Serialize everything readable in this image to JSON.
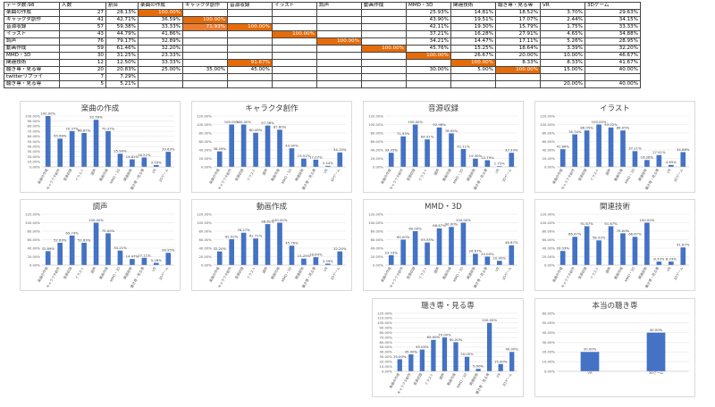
{
  "sheet": {
    "header": [
      "データ数:98",
      "人数",
      "割合",
      "楽曲の作成",
      "キャラクタ創作",
      "音源収録",
      "イラスト",
      "調声",
      "動画作成",
      "MMD・3D",
      "関連技術",
      "聴き専・見る専",
      "VR",
      "3Dゲーム"
    ],
    "rows": [
      {
        "label": "楽曲の作成",
        "count": "27",
        "ratio": "28.13%",
        "cells": [
          "100.00%",
          "",
          "",
          "",
          "",
          "",
          "25.93%",
          "14.81%",
          "18.52%",
          "3.70%",
          "29.63%"
        ]
      },
      {
        "label": "キャラクタ創作",
        "count": "41",
        "ratio": "42.71%",
        "cells": [
          "36.59%",
          "100.00%",
          "",
          "",
          "",
          "",
          "43.90%",
          "19.51%",
          "17.07%",
          "2.44%",
          "34.15%"
        ]
      },
      {
        "label": "音源収録",
        "count": "57",
        "ratio": "59.38%",
        "cells": [
          "33.33%",
          "71.93%",
          "100.00%",
          "",
          "",
          "",
          "42.11%",
          "19.30%",
          "15.79%",
          "1.75%",
          "33.33%"
        ]
      },
      {
        "label": "イラスト",
        "count": "43",
        "ratio": "44.79%",
        "cells": [
          "41.86%",
          "",
          "",
          "100.00%",
          "",
          "",
          "37.21%",
          "16.28%",
          "27.91%",
          "4.65%",
          "34.88%"
        ]
      },
      {
        "label": "調声",
        "count": "76",
        "ratio": "79.17%",
        "cells": [
          "32.89%",
          "",
          "",
          "",
          "100.00%",
          "",
          "34.21%",
          "14.47%",
          "17.11%",
          "5.26%",
          "28.95%"
        ]
      },
      {
        "label": "動画作成",
        "count": "59",
        "ratio": "61.46%",
        "cells": [
          "32.20%",
          "",
          "",
          "",
          "",
          "100.00%",
          "45.76%",
          "15.25%",
          "18.64%",
          "3.39%",
          "32.20%"
        ]
      },
      {
        "label": "MMD・3D",
        "count": "30",
        "ratio": "31.25%",
        "cells": [
          "23.33%",
          "",
          "",
          "",
          "",
          "",
          "100.00%",
          "26.67%",
          "20.00%",
          "10.00%",
          "46.67%"
        ]
      },
      {
        "label": "関連技術",
        "count": "12",
        "ratio": "12.50%",
        "cells": [
          "33.33%",
          "",
          "91.67%",
          "",
          "",
          "",
          "",
          "100.00%",
          "8.33%",
          "8.33%",
          "41.67%"
        ]
      },
      {
        "label": "聴き専・見る専",
        "count": "20",
        "ratio": "20.83%",
        "cells": [
          "25.00%",
          "35.00%",
          "45.00%",
          "",
          "",
          "",
          "30.00%",
          "5.00%",
          "100.00%",
          "15.00%",
          "40.00%"
        ]
      },
      {
        "label": "twitterリプライ",
        "count": "7",
        "ratio": "7.29%",
        "cells": [
          "",
          "",
          "",
          "",
          "",
          "",
          "",
          "",
          "",
          "",
          ""
        ]
      },
      {
        "label": "聴き専・見る専",
        "count": "5",
        "ratio": "5.21%",
        "cells": [
          "",
          "",
          "",
          "",
          "",
          "",
          "",
          "",
          "",
          "20.00%",
          "40.00%"
        ]
      }
    ]
  },
  "colors": {
    "bar": "#4472c4",
    "hot_strong": "#e46c0a",
    "hot_mid": "#ed7d31",
    "hot_light": "#f4b183",
    "grid": "#d9d9d9",
    "table_border": "#444444"
  },
  "chart_data": [
    {
      "type": "bar",
      "title": "楽曲の作成",
      "categories": [
        "楽曲の作成",
        "キャラクタ創作",
        "音源収録",
        "イラスト",
        "調声",
        "動画作成",
        "MMD・3D",
        "関連技術",
        "聴き専・見る専",
        "VR",
        "3Dゲーム"
      ],
      "values": [
        100.0,
        55.56,
        70.37,
        66.67,
        92.59,
        70.37,
        25.93,
        14.81,
        18.52,
        3.7,
        29.63
      ],
      "ylim": [
        0,
        100
      ],
      "yticks": [
        "0.00%",
        "10.00%",
        "20.00%",
        "30.00%",
        "40.00%",
        "50.00%",
        "60.00%",
        "70.00%",
        "80.00%",
        "90.00%",
        "100.00%"
      ]
    },
    {
      "type": "bar",
      "title": "キャラクタ創作",
      "categories": [
        "楽曲の作成",
        "キャラクタ創作",
        "音源収録",
        "イラスト",
        "調声",
        "動画作成",
        "MMD・3D",
        "関連技術",
        "聴き専・見る専",
        "VR",
        "3Dゲーム"
      ],
      "values": [
        36.59,
        100.0,
        100.0,
        80.49,
        97.56,
        87.8,
        43.9,
        19.51,
        17.07,
        2.44,
        34.15
      ],
      "ylim": [
        0,
        120
      ],
      "yticks": [
        "0.00%",
        "20.00%",
        "40.00%",
        "60.00%",
        "80.00%",
        "100.00%",
        "120.00%"
      ]
    },
    {
      "type": "bar",
      "title": "音源収録",
      "categories": [
        "楽曲の作成",
        "キャラクタ創作",
        "音源収録",
        "イラスト",
        "調声",
        "動画作成",
        "MMD・3D",
        "関連技術",
        "聴き専・見る専",
        "VR",
        "3Dゲーム"
      ],
      "values": [
        33.33,
        71.93,
        100.0,
        64.91,
        92.98,
        78.95,
        42.11,
        19.3,
        15.79,
        1.75,
        33.33
      ],
      "ylim": [
        0,
        120
      ],
      "yticks": [
        "0.00%",
        "20.00%",
        "40.00%",
        "60.00%",
        "80.00%",
        "100.00%",
        "120.00%"
      ]
    },
    {
      "type": "bar",
      "title": "イラスト",
      "categories": [
        "楽曲の作成",
        "キャラクタ創作",
        "音源収録",
        "イラスト",
        "調声",
        "動画作成",
        "MMD・3D",
        "関連技術",
        "聴き専・見る専",
        "VR",
        "3Dゲーム"
      ],
      "values": [
        41.86,
        76.74,
        86.05,
        100.0,
        93.02,
        86.05,
        37.21,
        16.28,
        27.91,
        4.65,
        34.88
      ],
      "ylim": [
        0,
        120
      ],
      "yticks": [
        "0.00%",
        "20.00%",
        "40.00%",
        "60.00%",
        "80.00%",
        "100.00%",
        "120.00%"
      ]
    },
    {
      "type": "bar",
      "title": "調声",
      "categories": [
        "楽曲の作成",
        "キャラクタ創作",
        "音源収録",
        "イラスト",
        "調声",
        "動画作成",
        "MMD・3D",
        "関連技術",
        "聴き専・見る専",
        "VR",
        "3Dゲーム"
      ],
      "values": [
        32.89,
        52.63,
        69.74,
        52.63,
        100.0,
        75.0,
        34.21,
        14.47,
        17.11,
        5.26,
        28.95
      ],
      "ylim": [
        0,
        120
      ],
      "yticks": [
        "0.00%",
        "20.00%",
        "40.00%",
        "60.00%",
        "80.00%",
        "100.00%",
        "120.00%"
      ]
    },
    {
      "type": "bar",
      "title": "動画作成",
      "categories": [
        "楽曲の作成",
        "キャラクタ創作",
        "音源収録",
        "イラスト",
        "調声",
        "動画作成",
        "MMD・3D",
        "関連技術",
        "聴き専・見る専",
        "VR",
        "3Dゲーム"
      ],
      "values": [
        32.2,
        61.02,
        76.27,
        62.71,
        96.61,
        100.0,
        45.76,
        15.25,
        18.64,
        3.39,
        32.2
      ],
      "ylim": [
        0,
        120
      ],
      "yticks": [
        "0.00%",
        "20.00%",
        "40.00%",
        "60.00%",
        "80.00%",
        "100.00%",
        "120.00%"
      ]
    },
    {
      "type": "bar",
      "title": "MMD・3D",
      "categories": [
        "楽曲の作成",
        "キャラクタ創作",
        "音源収録",
        "イラスト",
        "調声",
        "動画作成",
        "MMD・3D",
        "関連技術",
        "聴き専・見る専",
        "VR",
        "3Dゲーム"
      ],
      "values": [
        23.33,
        60.0,
        80.0,
        53.33,
        86.67,
        90.0,
        100.0,
        26.67,
        20.0,
        10.0,
        46.67
      ],
      "ylim": [
        0,
        120
      ],
      "yticks": [
        "0.00%",
        "20.00%",
        "40.00%",
        "60.00%",
        "80.00%",
        "100.00%",
        "120.00%"
      ]
    },
    {
      "type": "bar",
      "title": "関連技術",
      "categories": [
        "楽曲の作成",
        "キャラクタ創作",
        "音源収録",
        "イラスト",
        "調声",
        "動画作成",
        "MMD・3D",
        "関連技術",
        "聴き専・見る専",
        "VR",
        "3Dゲーム"
      ],
      "values": [
        33.33,
        66.67,
        91.67,
        58.33,
        91.67,
        75.0,
        66.67,
        100.0,
        8.33,
        8.33,
        41.67
      ],
      "ylim": [
        0,
        120
      ],
      "yticks": [
        "0.00%",
        "20.00%",
        "40.00%",
        "60.00%",
        "80.00%",
        "100.00%",
        "120.00%"
      ]
    },
    {
      "type": "bar",
      "title": "聴き専・見る専",
      "categories": [
        "楽曲の作成",
        "キャラクタ創作",
        "音源収録",
        "イラスト",
        "調声",
        "動画作成",
        "MMD・3D",
        "関連技術",
        "聴き専・見る専",
        "VR",
        "3Dゲーム"
      ],
      "values": [
        25.0,
        35.0,
        45.0,
        65.0,
        70.0,
        60.0,
        30.0,
        5.0,
        100.0,
        15.0,
        40.0
      ],
      "ylim": [
        0,
        120
      ],
      "yticks": [
        "0.00%",
        "10.00%",
        "20.00%",
        "30.00%",
        "40.00%",
        "50.00%",
        "60.00%",
        "70.00%",
        "80.00%",
        "90.00%",
        "100.00%",
        "110.00%",
        "120.00%"
      ]
    },
    {
      "type": "bar",
      "title": "本当の聴き専",
      "categories": [
        "VR",
        "3Dゲーム"
      ],
      "values": [
        20.0,
        40.0
      ],
      "ylim": [
        0,
        60
      ],
      "yticks": [
        "0.00%",
        "10.00%",
        "20.00%",
        "30.00%",
        "40.00%",
        "50.00%",
        "60.00%"
      ]
    }
  ]
}
